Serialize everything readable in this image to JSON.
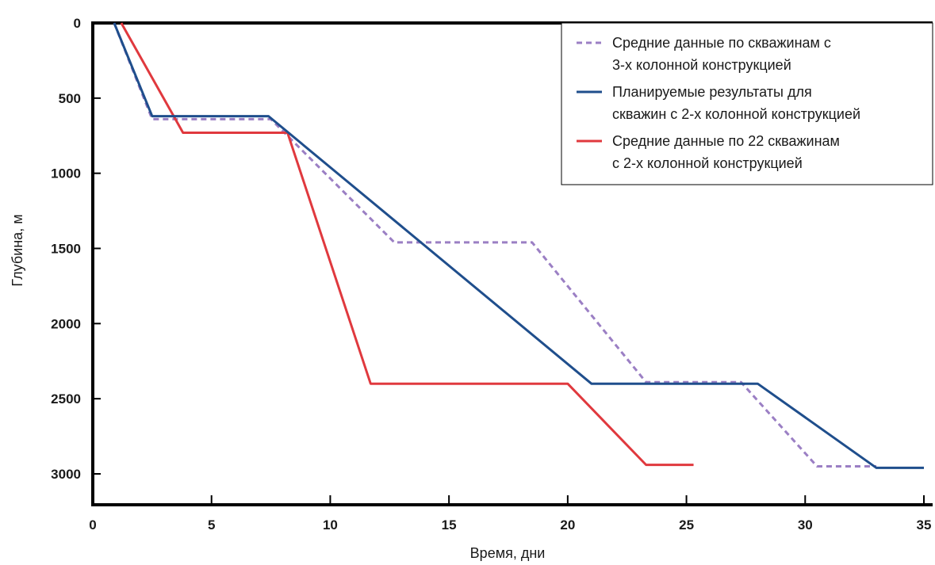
{
  "chart_data": {
    "type": "line",
    "xlabel": "Время, дни",
    "ylabel": "Глубина, м",
    "xlim": [
      0,
      35
    ],
    "ylim": [
      0,
      3000
    ],
    "y_inverted": true,
    "x_ticks": [
      "0",
      "5",
      "10",
      "15",
      "20",
      "25",
      "30",
      "35"
    ],
    "y_ticks": [
      "0",
      "500",
      "1000",
      "1500",
      "2000",
      "2500",
      "3000"
    ],
    "grid": false,
    "legend_position": "top-right",
    "series": [
      {
        "name": "Средние данные по скважинам с 3-х колонной конструкцией",
        "legend_lines": [
          "Средние данные по скважинам с",
          "3-х колонной конструкцией"
        ],
        "color": "#9b7fc4",
        "style": "dashed",
        "x": [
          0.9,
          2.5,
          7.5,
          12.7,
          18.5,
          23.3,
          27.3,
          30.5,
          33
        ],
        "y": [
          0,
          640,
          640,
          1460,
          1460,
          2390,
          2390,
          2950,
          2950
        ]
      },
      {
        "name": "Планируемые результаты для скважин с 2-х колонной конструкцией",
        "legend_lines": [
          "Планируемые результаты для",
          "скважин с 2-х колонной конструкцией"
        ],
        "color": "#1f4e8c",
        "style": "solid",
        "x": [
          0.9,
          2.5,
          7.4,
          21,
          28,
          33,
          35
        ],
        "y": [
          0,
          620,
          620,
          2400,
          2400,
          2960,
          2960
        ]
      },
      {
        "name": "Средние данные по 22 скважинам с 2-х колонной конструкцией",
        "legend_lines": [
          "Средние данные по 22 скважинам",
          "с 2-х колонной конструкцией"
        ],
        "color": "#e0393e",
        "style": "solid",
        "x": [
          1.2,
          3.8,
          8.2,
          11.7,
          20,
          23.3,
          25.3
        ],
        "y": [
          0,
          730,
          730,
          2400,
          2400,
          2940,
          2940
        ]
      }
    ]
  }
}
